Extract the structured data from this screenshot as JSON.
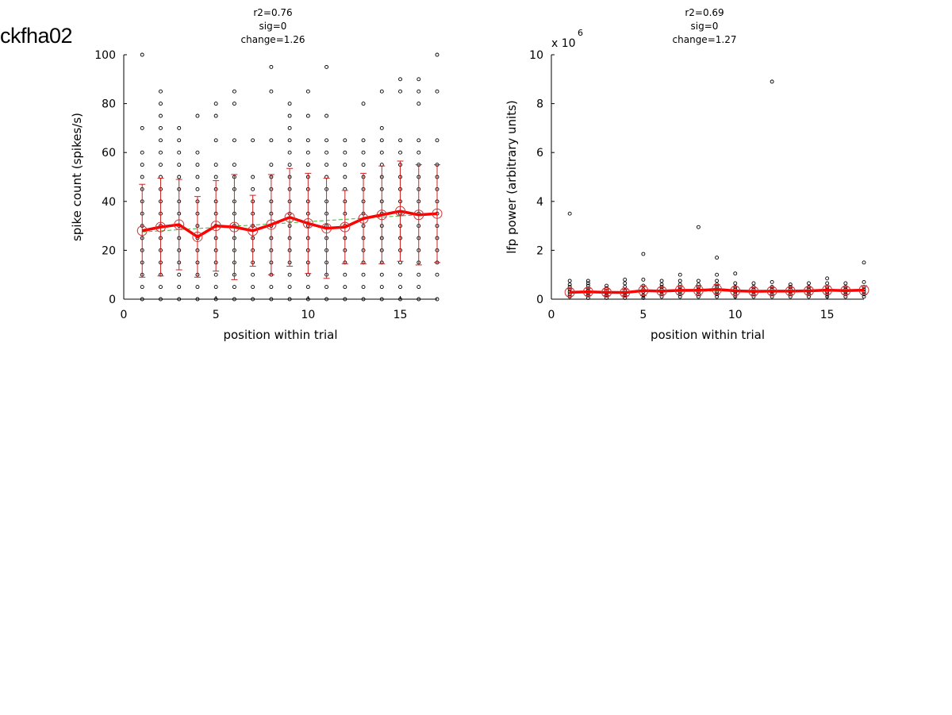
{
  "figure": {
    "label": "ckfha02"
  },
  "chart_data": [
    {
      "type": "scatter",
      "stats": [
        "r2=0.76",
        "sig=0",
        "change=1.26"
      ],
      "xlabel": "position within trial",
      "ylabel": "spike count (spikes/s)",
      "scale_label": "",
      "xlim": [
        0,
        17
      ],
      "ylim": [
        0,
        100
      ],
      "xticks": [
        0,
        5,
        10,
        15
      ],
      "yticks": [
        0,
        20,
        40,
        60,
        80,
        100
      ],
      "grid": false,
      "scatter": [
        {
          "x": 1,
          "y": [
            0,
            5,
            10,
            15,
            20,
            25,
            30,
            35,
            40,
            45,
            50,
            55,
            60,
            70,
            100
          ]
        },
        {
          "x": 2,
          "y": [
            0,
            5,
            10,
            15,
            20,
            25,
            30,
            35,
            40,
            45,
            50,
            55,
            60,
            65,
            70,
            75,
            80,
            85
          ]
        },
        {
          "x": 3,
          "y": [
            0,
            5,
            10,
            15,
            20,
            25,
            30,
            35,
            40,
            45,
            50,
            55,
            60,
            65,
            70
          ]
        },
        {
          "x": 4,
          "y": [
            0,
            5,
            10,
            15,
            20,
            25,
            30,
            35,
            40,
            45,
            50,
            55,
            60,
            75
          ]
        },
        {
          "x": 5,
          "y": [
            0,
            5,
            10,
            15,
            20,
            25,
            30,
            35,
            40,
            45,
            50,
            55,
            65,
            75,
            80
          ]
        },
        {
          "x": 6,
          "y": [
            0,
            5,
            10,
            15,
            20,
            25,
            30,
            35,
            40,
            45,
            50,
            55,
            65,
            80,
            85
          ]
        },
        {
          "x": 7,
          "y": [
            0,
            5,
            10,
            15,
            20,
            25,
            30,
            35,
            40,
            45,
            50,
            65
          ]
        },
        {
          "x": 8,
          "y": [
            0,
            5,
            10,
            15,
            20,
            25,
            30,
            35,
            40,
            45,
            50,
            55,
            65,
            85,
            95
          ]
        },
        {
          "x": 9,
          "y": [
            0,
            5,
            10,
            15,
            20,
            25,
            30,
            35,
            40,
            45,
            50,
            55,
            60,
            65,
            70,
            75,
            80
          ]
        },
        {
          "x": 10,
          "y": [
            0,
            5,
            10,
            15,
            20,
            25,
            30,
            35,
            40,
            45,
            50,
            55,
            60,
            65,
            75,
            85
          ]
        },
        {
          "x": 11,
          "y": [
            0,
            5,
            10,
            15,
            20,
            25,
            30,
            35,
            40,
            45,
            50,
            55,
            60,
            65,
            75,
            95
          ]
        },
        {
          "x": 12,
          "y": [
            0,
            5,
            10,
            15,
            20,
            25,
            30,
            35,
            40,
            45,
            50,
            55,
            60,
            65
          ]
        },
        {
          "x": 13,
          "y": [
            0,
            5,
            10,
            15,
            20,
            25,
            30,
            35,
            40,
            45,
            50,
            55,
            60,
            65,
            80
          ]
        },
        {
          "x": 14,
          "y": [
            0,
            5,
            10,
            15,
            20,
            25,
            30,
            35,
            40,
            45,
            50,
            55,
            60,
            65,
            70,
            85
          ]
        },
        {
          "x": 15,
          "y": [
            0,
            5,
            10,
            15,
            20,
            25,
            30,
            35,
            40,
            45,
            50,
            55,
            60,
            65,
            85,
            90
          ]
        },
        {
          "x": 16,
          "y": [
            0,
            5,
            10,
            15,
            20,
            25,
            30,
            35,
            40,
            45,
            50,
            55,
            60,
            65,
            80,
            85,
            90
          ]
        },
        {
          "x": 17,
          "y": [
            0,
            10,
            15,
            20,
            25,
            30,
            35,
            40,
            45,
            50,
            55,
            65,
            85,
            100
          ]
        }
      ],
      "mean": {
        "x": [
          1,
          2,
          3,
          4,
          5,
          6,
          7,
          8,
          9,
          10,
          11,
          12,
          13,
          14,
          15,
          16,
          17
        ],
        "y": [
          28,
          29.5,
          30.5,
          25.5,
          30,
          29.5,
          28,
          30.5,
          33.5,
          31,
          29,
          29.5,
          33,
          34.5,
          36,
          34.5,
          35
        ],
        "err": [
          19,
          20,
          18.5,
          16.5,
          18.5,
          21.5,
          14.5,
          20.5,
          20,
          20.5,
          20.5,
          15,
          18.5,
          20,
          20.5,
          20.5,
          20
        ]
      },
      "fit": {
        "x": [
          1,
          17
        ],
        "y": [
          27.5,
          35
        ]
      },
      "colors": {
        "points": "#000000",
        "mean": "#ff0000",
        "error_bars": "#cc2222",
        "mean_markers": "#cc3333",
        "fit": "#33bb33"
      }
    },
    {
      "type": "scatter",
      "stats": [
        "r2=0.69",
        "sig=0",
        "change=1.27"
      ],
      "xlabel": "position within trial",
      "ylabel": "lfp power (arbitrary units)",
      "scale_label": "x 10",
      "scale_exponent": "6",
      "xlim": [
        0,
        17
      ],
      "ylim": [
        0,
        10
      ],
      "xticks": [
        0,
        5,
        10,
        15
      ],
      "yticks": [
        0,
        2,
        4,
        6,
        8,
        10
      ],
      "grid": false,
      "scatter": [
        {
          "x": 1,
          "y": [
            0.1,
            0.2,
            0.3,
            0.4,
            0.5,
            0.6,
            0.75,
            3.5
          ]
        },
        {
          "x": 2,
          "y": [
            0.05,
            0.15,
            0.25,
            0.35,
            0.45,
            0.55,
            0.65,
            0.75
          ]
        },
        {
          "x": 3,
          "y": [
            0.05,
            0.15,
            0.25,
            0.35,
            0.45,
            0.55
          ]
        },
        {
          "x": 4,
          "y": [
            0.05,
            0.15,
            0.25,
            0.35,
            0.5,
            0.65,
            0.8
          ]
        },
        {
          "x": 5,
          "y": [
            0.05,
            0.15,
            0.3,
            0.4,
            0.55,
            0.8,
            1.85
          ]
        },
        {
          "x": 6,
          "y": [
            0.1,
            0.2,
            0.3,
            0.4,
            0.5,
            0.6,
            0.75
          ]
        },
        {
          "x": 7,
          "y": [
            0.1,
            0.2,
            0.3,
            0.4,
            0.5,
            0.6,
            0.75,
            1.0
          ]
        },
        {
          "x": 8,
          "y": [
            0.1,
            0.2,
            0.3,
            0.4,
            0.5,
            0.6,
            0.75,
            2.95
          ]
        },
        {
          "x": 9,
          "y": [
            0.1,
            0.2,
            0.3,
            0.4,
            0.5,
            0.6,
            0.75,
            1.0,
            1.7
          ]
        },
        {
          "x": 10,
          "y": [
            0.1,
            0.2,
            0.3,
            0.4,
            0.5,
            0.65,
            1.05
          ]
        },
        {
          "x": 11,
          "y": [
            0.1,
            0.2,
            0.3,
            0.4,
            0.5,
            0.65
          ]
        },
        {
          "x": 12,
          "y": [
            0.1,
            0.2,
            0.3,
            0.4,
            0.5,
            0.7,
            8.9
          ]
        },
        {
          "x": 13,
          "y": [
            0.1,
            0.2,
            0.3,
            0.4,
            0.5,
            0.6
          ]
        },
        {
          "x": 14,
          "y": [
            0.1,
            0.2,
            0.3,
            0.4,
            0.5,
            0.65
          ]
        },
        {
          "x": 15,
          "y": [
            0.1,
            0.2,
            0.3,
            0.4,
            0.5,
            0.65,
            0.85
          ]
        },
        {
          "x": 16,
          "y": [
            0.1,
            0.2,
            0.3,
            0.4,
            0.5,
            0.65
          ]
        },
        {
          "x": 17,
          "y": [
            0.1,
            0.2,
            0.3,
            0.4,
            0.5,
            0.7,
            1.5
          ]
        }
      ],
      "mean": {
        "x": [
          1,
          2,
          3,
          4,
          5,
          6,
          7,
          8,
          9,
          10,
          11,
          12,
          13,
          14,
          15,
          16,
          17
        ],
        "y": [
          0.28,
          0.3,
          0.28,
          0.27,
          0.35,
          0.33,
          0.36,
          0.36,
          0.4,
          0.34,
          0.32,
          0.33,
          0.33,
          0.34,
          0.37,
          0.35,
          0.37
        ],
        "err": [
          0.15,
          0.15,
          0.13,
          0.13,
          0.2,
          0.15,
          0.18,
          0.2,
          0.2,
          0.17,
          0.15,
          0.15,
          0.15,
          0.15,
          0.17,
          0.15,
          0.18
        ]
      },
      "fit": {
        "x": [
          1,
          17
        ],
        "y": [
          0.29,
          0.37
        ]
      },
      "colors": {
        "points": "#000000",
        "mean": "#ff0000",
        "error_bars": "#cc2222",
        "mean_markers": "#cc3333",
        "fit": "#33bb33"
      }
    }
  ]
}
